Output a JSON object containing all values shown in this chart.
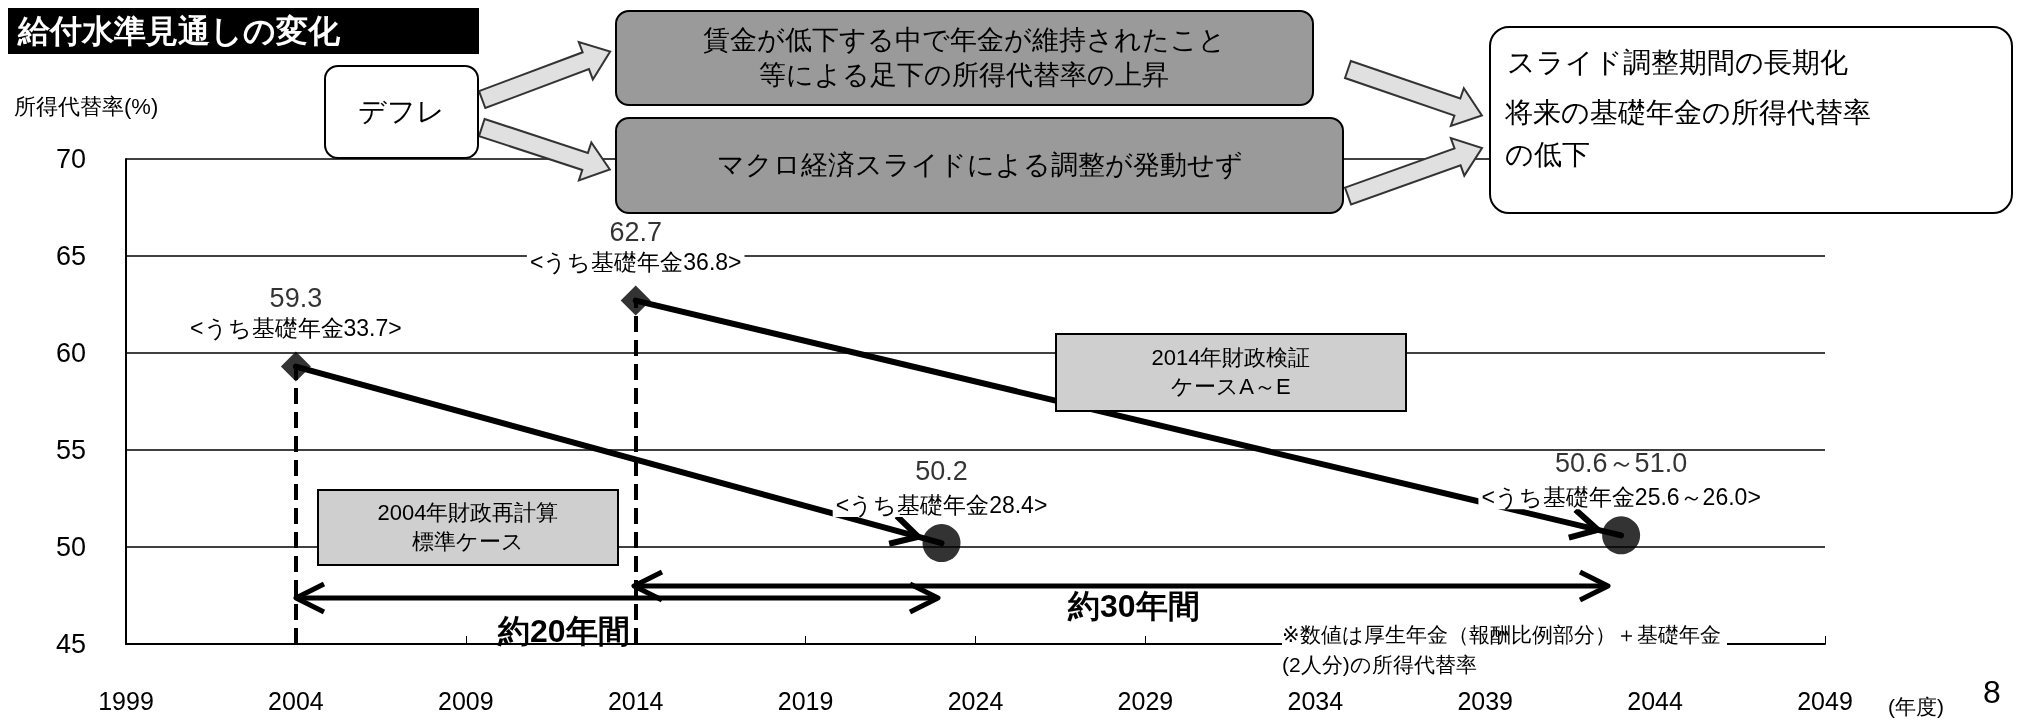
{
  "chart_data": {
    "type": "line",
    "title": "給付水準見通しの変化",
    "ylabel": "所得代替率(%)",
    "xlabel": "(年度)",
    "xlim": [
      1999,
      2049
    ],
    "xticks": [
      1999,
      2004,
      2009,
      2014,
      2019,
      2024,
      2029,
      2034,
      2039,
      2044,
      2049
    ],
    "ylim": [
      45,
      70
    ],
    "yticks": [
      45,
      50,
      55,
      60,
      65,
      70
    ],
    "grid": "y",
    "series": [
      {
        "x": [
          2004,
          2023
        ],
        "values": [
          59.3,
          50.2
        ],
        "color": "#000000",
        "marker": "none",
        "line_style": "solid"
      },
      {
        "x": [
          2014,
          2043
        ],
        "values": [
          62.7,
          50.6
        ],
        "color": "#000000",
        "marker": "none",
        "line_style": "solid"
      },
      {
        "type": "scatter",
        "x": [
          2004,
          2014
        ],
        "values": [
          59.3,
          62.7
        ],
        "color": "#000000",
        "marker": "diamond",
        "value_labels": [
          "59.3",
          "62.7"
        ]
      },
      {
        "type": "scatter",
        "x": [
          2023,
          2043
        ],
        "values": [
          50.2,
          50.6
        ],
        "color": "#000000",
        "marker": "circle",
        "value_labels": [
          "50.2",
          "50.6～51.0"
        ]
      }
    ],
    "ref_lines": [
      {
        "axis": "x",
        "value": 2004,
        "color": "#000000",
        "line_style": "dashed"
      },
      {
        "axis": "x",
        "value": 2014,
        "color": "#000000",
        "line_style": "dashed"
      }
    ],
    "annotations": [
      "デフレ",
      "賃金が低下する中で年金が維持されたこと等による足下の所得代替率の上昇",
      "マクロ経済スライドによる調整が発動せず",
      "スライド調整期間の長期化",
      "将来の基礎年金の所得代替率の低下",
      "2004年財政再計算標準ケース",
      "2014年財政検証ケースA～E",
      "約20年間",
      "約30年間",
      "※数値は厚生年金（報酬比例部分）＋基礎年金(2人分)の所得代替率",
      "8",
      {
        "text": "<うち基礎年金33.7>",
        "x": 2004,
        "y": 59.3
      },
      {
        "text": "<うち基礎年金36.8>",
        "x": 2014,
        "y": 62.7
      },
      {
        "text": "<うち基礎年金28.4>",
        "x": 2023,
        "y": 50.2
      },
      {
        "text": "<うち基礎年金25.6～26.0>",
        "x": 2043,
        "y": 50.6
      }
    ]
  }
}
